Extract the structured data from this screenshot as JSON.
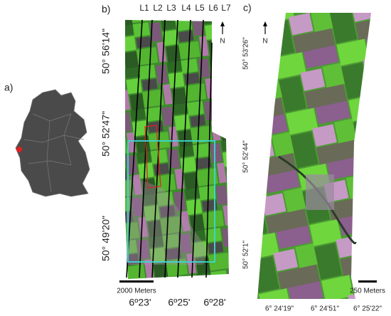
{
  "panels": {
    "a": {
      "label": "a)"
    },
    "b": {
      "label": "b)",
      "lines": [
        "L1",
        "L2",
        "L3",
        "L4",
        "L5",
        "L6",
        "L7"
      ],
      "north": "N",
      "lat_labels": [
        "50° 56'14\"",
        "50° 52'47\"",
        "50° 49'20\""
      ],
      "lon_labels": [
        "6º23'",
        "6º25'",
        "6º28'"
      ],
      "scale": "2000 Meters"
    },
    "c": {
      "label": "c)",
      "north": "N",
      "lat_labels": [
        "50° 53'26\"",
        "50° 52'44\"",
        "50° 52'1\""
      ],
      "lon_labels": [
        "6° 24'19\"",
        "6° 24'51\"",
        "6° 25'22\""
      ],
      "scale": "250 Meters"
    }
  }
}
